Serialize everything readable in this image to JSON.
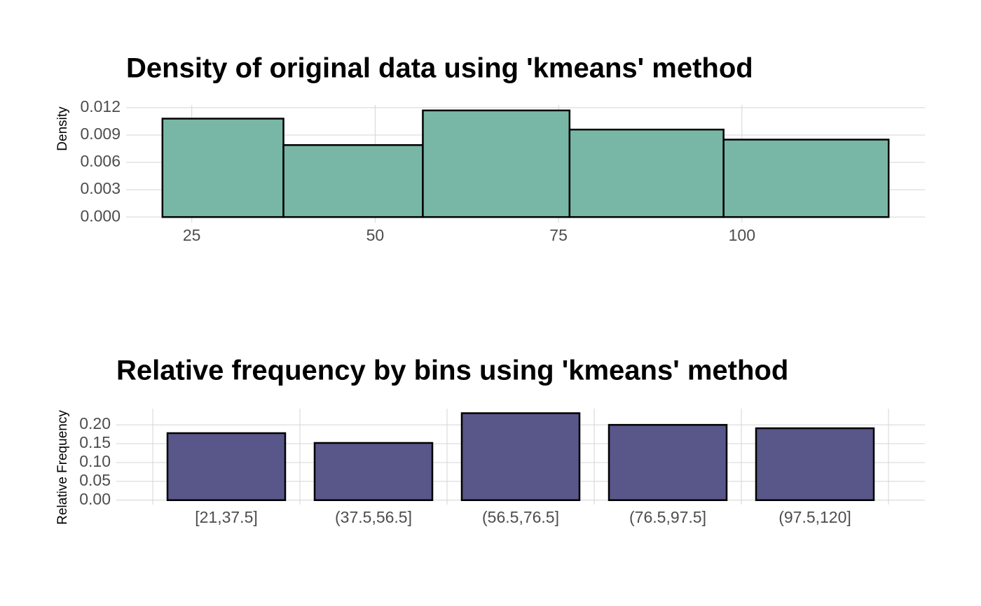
{
  "chart_data": [
    {
      "type": "histogram",
      "title": "Density of original data using 'kmeans' method",
      "y_label": "Density",
      "bins": [
        21,
        37.5,
        56.5,
        76.5,
        97.5,
        120
      ],
      "values": [
        0.0108,
        0.0079,
        0.0117,
        0.0096,
        0.0085
      ],
      "color": "#78b7a5",
      "edgecolor": "#000000",
      "xlim": [
        16.05,
        124.95
      ],
      "xticks": [
        25,
        50,
        75,
        100
      ],
      "ylim": [
        -0.0006,
        0.0123
      ],
      "yticks": [
        {
          "value": 0,
          "label": "0.000"
        },
        0.003,
        0.006,
        0.009,
        0.012
      ],
      "grid": true
    },
    {
      "type": "bar",
      "title": "Relative frequency by bins using 'kmeans' method",
      "y_label": "Relative Frequency",
      "categories": [
        "[21,37.5]",
        "(37.5,56.5]",
        "(56.5,76.5]",
        "(76.5,97.5]",
        "(97.5,120]"
      ],
      "values": [
        0.178,
        0.152,
        0.231,
        0.2,
        0.191
      ],
      "color": "#595689",
      "edgecolor": "#000000",
      "ylim": [
        -0.0116,
        0.243
      ],
      "yticks": [
        {
          "value": 0,
          "label": "0.00"
        },
        0.05,
        {
          "value": 0.1,
          "label": "0.10"
        },
        0.15,
        {
          "value": 0.2,
          "label": "0.20"
        }
      ],
      "grid": true
    }
  ]
}
